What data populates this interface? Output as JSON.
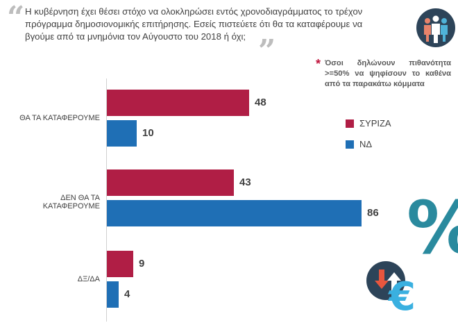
{
  "question": {
    "text": "Η κυβέρνηση έχει θέσει στόχο να ολοκληρώσει εντός χρονοδιαγράμματος το τρέχον πρόγραμμα δημοσιονομικής επιτήρησης. Εσείς πιστεύετε ότι θα τα καταφέρουμε να βγούμε από τα μνημόνια τον Αύγουστο του 2018 ή όχι;",
    "open_quote": "“",
    "close_quote": "”"
  },
  "note": {
    "star": "*",
    "text": "Όσοι δηλώνουν πιθανότητα >=50% να ψηφίσουν το καθένα από τα παρακάτω κόμματα"
  },
  "decorations": {
    "percent_symbol": "%",
    "euro_symbol": "€",
    "people_icon": "people-group-icon",
    "arrows_icon": "up-down-arrows-icon"
  },
  "colors": {
    "syriza": "#b01e45",
    "nd": "#1f6fb5",
    "badge": "#2d4459",
    "teal": "#2a8a9e"
  },
  "chart_data": {
    "type": "bar",
    "orientation": "horizontal",
    "categories": [
      "ΘΑ ΤΑ ΚΑΤΑΦΕΡΟΥΜΕ",
      "ΔΕΝ ΘΑ ΤΑ ΚΑΤΑΦΕΡΟΥΜΕ",
      "ΔΞ/ΔΑ"
    ],
    "series": [
      {
        "name": "ΣΥΡΙΖΑ",
        "color": "#b01e45",
        "values": [
          48,
          43,
          9
        ]
      },
      {
        "name": "ΝΔ",
        "color": "#1f6fb5",
        "values": [
          10,
          86,
          4
        ]
      }
    ],
    "xlim": [
      0,
      100
    ],
    "title": "",
    "xlabel": "",
    "ylabel": "",
    "grid": false,
    "legend": "right"
  }
}
